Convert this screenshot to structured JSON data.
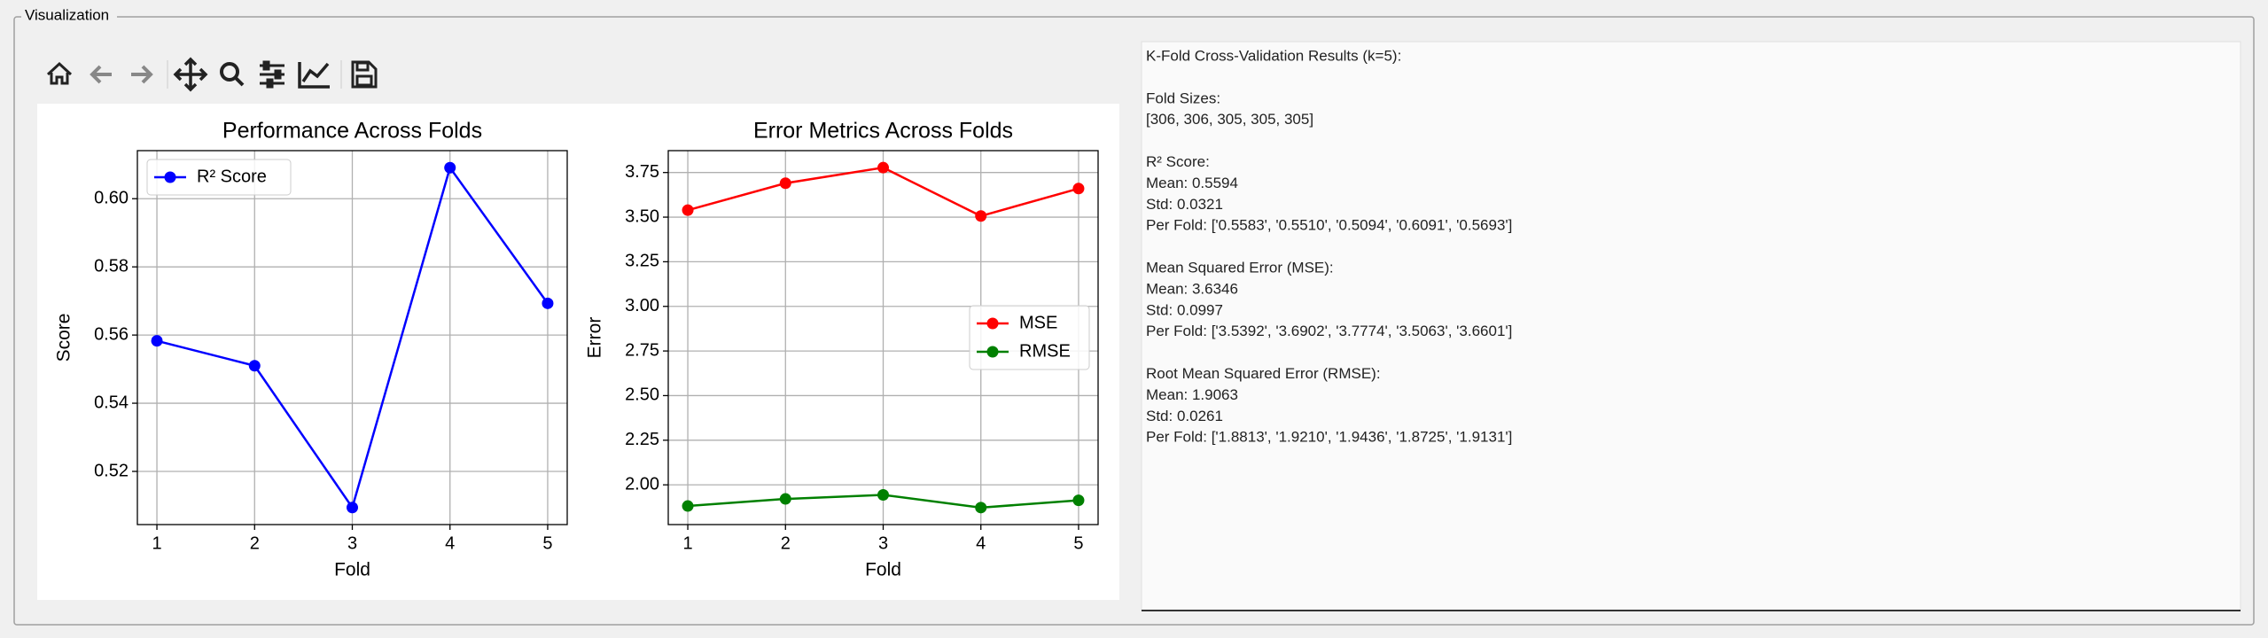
{
  "window": {
    "group_title": "Visualization"
  },
  "chart_data": [
    {
      "type": "line",
      "title": "Performance Across Folds",
      "xlabel": "Fold",
      "ylabel": "Score",
      "x": [
        1,
        2,
        3,
        4,
        5
      ],
      "series": [
        {
          "name": "R² Score",
          "color": "#0000ff",
          "values": [
            0.5583,
            0.551,
            0.5094,
            0.6091,
            0.5693
          ]
        }
      ],
      "xlim": [
        0.8,
        5.2
      ],
      "xticks": [
        1,
        2,
        3,
        4,
        5
      ],
      "ylim": [
        0.5044,
        0.6141
      ],
      "yticks": [
        0.52,
        0.54,
        0.56,
        0.58,
        {
          "value": 0.6,
          "label": "0.60"
        }
      ],
      "grid": true,
      "legend": "upper left"
    },
    {
      "type": "line",
      "title": "Error Metrics Across Folds",
      "xlabel": "Fold",
      "ylabel": "Error",
      "x": [
        1,
        2,
        3,
        4,
        5
      ],
      "series": [
        {
          "name": "MSE",
          "color": "#ff0000",
          "values": [
            3.5392,
            3.6902,
            3.7774,
            3.5063,
            3.6601
          ]
        },
        {
          "name": "RMSE",
          "color": "#008000",
          "values": [
            1.8813,
            1.921,
            1.9436,
            1.8725,
            1.9131
          ]
        }
      ],
      "xlim": [
        0.8,
        5.2
      ],
      "xticks": [
        1,
        2,
        3,
        4,
        5
      ],
      "ylim": [
        1.7773,
        3.8726
      ],
      "yticks": [
        {
          "value": 2,
          "label": "2.00"
        },
        2.25,
        {
          "value": 2.5,
          "label": "2.50"
        },
        2.75,
        {
          "value": 3,
          "label": "3.00"
        },
        3.25,
        {
          "value": 3.5,
          "label": "3.50"
        },
        3.75
      ],
      "grid": true,
      "legend": "center right"
    }
  ],
  "panel": {
    "blocks": [
      [
        "K-Fold Cross-Validation Results (k=5):"
      ],
      [
        "Fold Sizes:",
        "[306, 306, 305, 305, 305]"
      ],
      [
        "R² Score:",
        "Mean: 0.5594",
        "Std: 0.0321",
        "Per Fold: ['0.5583', '0.5510', '0.5094', '0.6091', '0.5693']"
      ],
      [
        "Mean Squared Error (MSE):",
        "Mean: 3.6346",
        "Std: 0.0997",
        "Per Fold: ['3.5392', '3.6902', '3.7774', '3.5063', '3.6601']"
      ],
      [
        "Root Mean Squared Error (RMSE):",
        "Mean: 1.9063",
        "Std: 0.0261",
        "Per Fold: ['1.8813', '1.9210', '1.9436', '1.8725', '1.9131']"
      ]
    ]
  }
}
